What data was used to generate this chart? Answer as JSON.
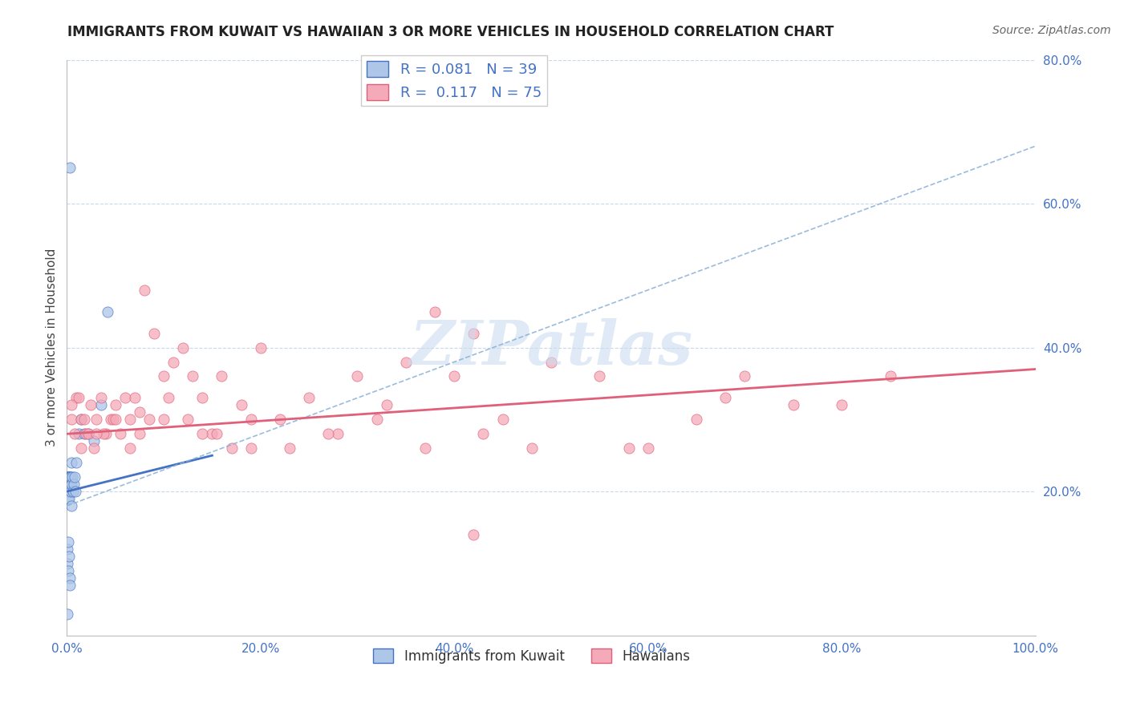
{
  "title": "IMMIGRANTS FROM KUWAIT VS HAWAIIAN 3 OR MORE VEHICLES IN HOUSEHOLD CORRELATION CHART",
  "source": "Source: ZipAtlas.com",
  "ylabel": "3 or more Vehicles in Household",
  "legend_labels": [
    "Immigrants from Kuwait",
    "Hawaiians"
  ],
  "r_values": [
    0.081,
    0.117
  ],
  "n_values": [
    39,
    75
  ],
  "scatter_color_blue": "#aec6e8",
  "scatter_color_pink": "#f4aab8",
  "line_color_blue": "#4472c4",
  "line_color_blue_dash": "#8ab0d8",
  "line_color_pink": "#e0607a",
  "background_color": "#ffffff",
  "grid_color": "#c8d8e8",
  "axis_color": "#4472c4",
  "title_color": "#222222",
  "watermark": "ZIPatlas",
  "watermark_color": "#ccddf0",
  "blue_x": [
    0.05,
    0.08,
    0.1,
    0.12,
    0.15,
    0.18,
    0.2,
    0.22,
    0.25,
    0.28,
    0.3,
    0.35,
    0.38,
    0.4,
    0.45,
    0.5,
    0.55,
    0.6,
    0.7,
    0.8,
    0.9,
    1.0,
    1.2,
    1.5,
    1.8,
    2.2,
    2.8,
    3.5,
    0.07,
    0.09,
    0.13,
    0.16,
    0.21,
    0.27,
    0.33,
    0.45,
    4.2,
    0.06,
    0.3
  ],
  "blue_y": [
    22,
    22,
    20,
    19,
    22,
    21,
    22,
    20,
    19,
    21,
    22,
    22,
    20,
    22,
    21,
    24,
    22,
    20,
    21,
    22,
    20,
    24,
    28,
    30,
    28,
    28,
    27,
    32,
    10,
    12,
    9,
    13,
    11,
    8,
    7,
    18,
    45,
    3,
    65
  ],
  "pink_x": [
    0.5,
    0.8,
    1.0,
    1.5,
    2.0,
    2.5,
    3.0,
    3.5,
    4.0,
    4.5,
    5.0,
    5.5,
    6.0,
    6.5,
    7.0,
    7.5,
    8.0,
    9.0,
    10.0,
    11.0,
    12.0,
    13.0,
    14.0,
    15.0,
    16.0,
    17.0,
    18.0,
    20.0,
    22.0,
    25.0,
    28.0,
    30.0,
    33.0,
    35.0,
    38.0,
    40.0,
    42.0,
    45.0,
    50.0,
    55.0,
    60.0,
    65.0,
    70.0,
    75.0,
    80.0,
    85.0,
    1.2,
    1.8,
    2.2,
    2.8,
    3.8,
    4.8,
    6.5,
    8.5,
    10.5,
    12.5,
    15.5,
    19.0,
    23.0,
    27.0,
    32.0,
    37.0,
    43.0,
    48.0,
    58.0,
    68.0,
    0.5,
    1.5,
    3.0,
    5.0,
    7.5,
    10.0,
    14.0,
    19.0,
    42.0
  ],
  "pink_y": [
    30,
    28,
    33,
    30,
    28,
    32,
    30,
    33,
    28,
    30,
    32,
    28,
    33,
    30,
    33,
    31,
    48,
    42,
    36,
    38,
    40,
    36,
    33,
    28,
    36,
    26,
    32,
    40,
    30,
    33,
    28,
    36,
    32,
    38,
    45,
    36,
    42,
    30,
    38,
    36,
    26,
    30,
    36,
    32,
    32,
    36,
    33,
    30,
    28,
    26,
    28,
    30,
    26,
    30,
    33,
    30,
    28,
    30,
    26,
    28,
    30,
    26,
    28,
    26,
    26,
    33,
    32,
    26,
    28,
    30,
    28,
    30,
    28,
    26,
    14
  ],
  "xlim": [
    0,
    100
  ],
  "ylim": [
    0,
    80
  ],
  "xticks": [
    0,
    20,
    40,
    60,
    80,
    100
  ],
  "yticks_right": [
    20,
    40,
    60,
    80
  ],
  "blue_solid_x0": 0,
  "blue_solid_y0": 20,
  "blue_solid_x1": 15,
  "blue_solid_y1": 25,
  "blue_dash_x0": 0,
  "blue_dash_y0": 18,
  "blue_dash_x1": 100,
  "blue_dash_y1": 68,
  "pink_x0": 0,
  "pink_y0": 28,
  "pink_x1": 100,
  "pink_y1": 37
}
